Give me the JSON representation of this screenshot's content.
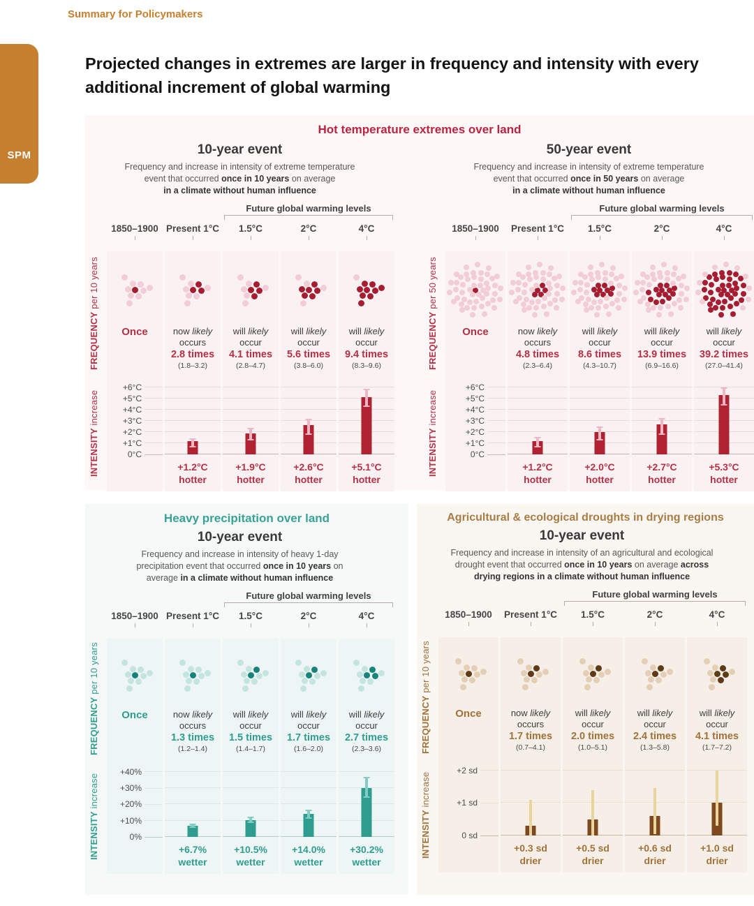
{
  "page": {
    "eyebrow": "Summary for Policymakers",
    "spm_tab": "SPM",
    "title": "Projected changes in extremes are larger in frequency and intensity with every additional increment of global warming"
  },
  "shared": {
    "future_label": "Future global warming levels",
    "columns": [
      "1850–1900",
      "Present 1°C",
      "1.5°C",
      "2°C",
      "4°C"
    ]
  },
  "panels": {
    "hot": {
      "title": "Hot temperature extremes over land",
      "colors": {
        "title": "#bd2340",
        "accent": "#b53045",
        "bar": "#b02231",
        "dot_light": "#f2cdd5",
        "dot_dark": "#a81c31",
        "err": "#efb6c3",
        "panel_bg": "#fdf7f7",
        "card_bg": "#faf2f2",
        "grid": "#e7dada",
        "zero": "#c6b6b6"
      },
      "subs": [
        {
          "subtitle": "10-year event",
          "desc_html": "Frequency and increase in intensity of extreme temperature<br>event that occurred <b>once in 10 years</b> on average<br><b>in a climate without human influence</b>",
          "freq_axis_strong": "FREQUENCY",
          "freq_axis_rest": "per 10 years",
          "intensity_axis_strong": "INTENSITY",
          "intensity_axis_rest": "increase",
          "dots_total": 10,
          "ymax": 6.6,
          "yticks": [
            {
              "label": "+6°C",
              "v": 6
            },
            {
              "label": "+5°C",
              "v": 5
            },
            {
              "label": "+4°C",
              "v": 4
            },
            {
              "label": "+3°C",
              "v": 3
            },
            {
              "label": "+2°C",
              "v": 2
            },
            {
              "label": "+1°C",
              "v": 1
            },
            {
              "label": "0°C",
              "v": 0
            }
          ],
          "cols": [
            {
              "once": "Once",
              "dark": 1
            },
            {
              "lead_html": "now <i>likely</i><br>occurs",
              "times": "2.8 times",
              "range": "(1.8–3.2)",
              "dark": 3,
              "bar": 1.2,
              "lo": 0.7,
              "hi": 1.4,
              "bar_label": "+1.2°C",
              "bar_label2": "hotter"
            },
            {
              "lead_html": "will <i>likely</i><br>occur",
              "times": "4.1 times",
              "range": "(2.8–4.7)",
              "dark": 4,
              "bar": 1.9,
              "lo": 1.3,
              "hi": 2.3,
              "bar_label": "+1.9°C",
              "bar_label2": "hotter"
            },
            {
              "lead_html": "will <i>likely</i><br>occur",
              "times": "5.6 times",
              "range": "(3.8–6.0)",
              "dark": 6,
              "bar": 2.6,
              "lo": 1.8,
              "hi": 3.1,
              "bar_label": "+2.6°C",
              "bar_label2": "hotter"
            },
            {
              "lead_html": "will <i>likely</i><br>occur",
              "times": "9.4 times",
              "range": "(8.3–9.6)",
              "dark": 9,
              "bar": 5.1,
              "lo": 4.3,
              "hi": 5.8,
              "bar_label": "+5.1°C",
              "bar_label2": "hotter"
            }
          ]
        },
        {
          "subtitle": "50-year event",
          "desc_html": "Frequency and increase in intensity of extreme temperature<br>event that occurred <b>once in 50 years</b> on average<br><b>in a climate without human influence</b>",
          "freq_axis_strong": "FREQUENCY",
          "freq_axis_rest": "per 50 years",
          "intensity_axis_strong": "INTENSITY",
          "intensity_axis_rest": "increase",
          "dots_total": 50,
          "ymax": 6.6,
          "yticks": [
            {
              "label": "+6°C",
              "v": 6
            },
            {
              "label": "+5°C",
              "v": 5
            },
            {
              "label": "+4°C",
              "v": 4
            },
            {
              "label": "+3°C",
              "v": 3
            },
            {
              "label": "+2°C",
              "v": 2
            },
            {
              "label": "+1°C",
              "v": 1
            },
            {
              "label": "0°C",
              "v": 0
            }
          ],
          "cols": [
            {
              "once": "Once",
              "dark": 1
            },
            {
              "lead_html": "now <i>likely</i><br>occurs",
              "times": "4.8 times",
              "range": "(2.3–6.4)",
              "dark": 5,
              "bar": 1.2,
              "lo": 0.7,
              "hi": 1.5,
              "bar_label": "+1.2°C",
              "bar_label2": "hotter"
            },
            {
              "lead_html": "will <i>likely</i><br>occur",
              "times": "8.6 times",
              "range": "(4.3–10.7)",
              "dark": 9,
              "bar": 2.0,
              "lo": 1.3,
              "hi": 2.4,
              "bar_label": "+2.0°C",
              "bar_label2": "hotter"
            },
            {
              "lead_html": "will <i>likely</i><br>occur",
              "times": "13.9 times",
              "range": "(6.9–16.6)",
              "dark": 14,
              "bar": 2.7,
              "lo": 1.8,
              "hi": 3.2,
              "bar_label": "+2.7°C",
              "bar_label2": "hotter"
            },
            {
              "lead_html": "will <i>likely</i><br>occur",
              "times": "39.2 times",
              "range": "(27.0–41.4)",
              "dark": 39,
              "bar": 5.3,
              "lo": 4.4,
              "hi": 5.9,
              "bar_label": "+5.3°C",
              "bar_label2": "hotter"
            }
          ]
        }
      ]
    },
    "precip": {
      "title": "Heavy precipitation over land",
      "colors": {
        "title": "#39a296",
        "accent": "#2f9d90",
        "bar": "#2e9d8f",
        "dot_light": "#c4e4e0",
        "dot_dark": "#17837a",
        "err": "#82ccc4",
        "panel_bg": "#f5faf9",
        "card_bg": "#eef6f5",
        "grid": "#d9e8e6",
        "zero": "#b7cbc8"
      },
      "subs": [
        {
          "subtitle": "10-year event",
          "desc_html": "Frequency and increase in intensity of heavy 1-day<br>precipitation event that occurred <b>once in 10 years</b> on<br>average <b>in a climate without human influence</b>",
          "freq_axis_strong": "FREQUENCY",
          "freq_axis_rest": "per 10 years",
          "intensity_axis_strong": "INTENSITY",
          "intensity_axis_rest": "increase",
          "dots_total": 10,
          "ymax": 45,
          "yticks": [
            {
              "label": "+40%",
              "v": 40
            },
            {
              "label": "+30%",
              "v": 30
            },
            {
              "label": "+20%",
              "v": 20
            },
            {
              "label": "+10%",
              "v": 10
            },
            {
              "label": "0%",
              "v": 0
            }
          ],
          "cols": [
            {
              "once": "Once",
              "dark": 1
            },
            {
              "lead_html": "now <i>likely</i><br>occurs",
              "times": "1.3 times",
              "range": "(1.2–1.4)",
              "dark": 1,
              "bar": 6.7,
              "lo": 5.8,
              "hi": 7.6,
              "bar_label": "+6.7%",
              "bar_label2": "wetter"
            },
            {
              "lead_html": "will <i>likely</i><br>occur",
              "times": "1.5 times",
              "range": "(1.4–1.7)",
              "dark": 2,
              "bar": 10.5,
              "lo": 8.8,
              "hi": 12.0,
              "bar_label": "+10.5%",
              "bar_label2": "wetter"
            },
            {
              "lead_html": "will <i>likely</i><br>occur",
              "times": "1.7 times",
              "range": "(1.6–2.0)",
              "dark": 2,
              "bar": 14.0,
              "lo": 11.5,
              "hi": 16.5,
              "bar_label": "+14.0%",
              "bar_label2": "wetter"
            },
            {
              "lead_html": "will <i>likely</i><br>occur",
              "times": "2.7 times",
              "range": "(2.3–3.6)",
              "dark": 3,
              "bar": 30.2,
              "lo": 24.5,
              "hi": 36.5,
              "bar_label": "+30.2%",
              "bar_label2": "wetter"
            }
          ]
        }
      ]
    },
    "drought": {
      "title": "Agricultural & ecological droughts in drying regions",
      "colors": {
        "title": "#a87c44",
        "accent": "#a2713a",
        "bar": "#7c4a1e",
        "dot_light": "#e4cfb6",
        "dot_dark": "#5f3a17",
        "err": "#e9d49e",
        "panel_bg": "#faf6f1",
        "card_bg": "#f6efe7",
        "grid": "#e9dfd2",
        "zero": "#c7b9a6"
      },
      "subs": [
        {
          "subtitle": "10-year event",
          "desc_html": "Frequency and increase in intensity of an agricultural and ecological<br>drought event that occurred <b>once in 10 years</b> on average <b>across</b><br><b>drying regions in a climate without human influence</b>",
          "freq_axis_strong": "FREQUENCY",
          "freq_axis_rest": "per 10 years",
          "intensity_axis_strong": "INTENSITY",
          "intensity_axis_rest": "increase",
          "dots_total": 10,
          "ymax": 2.25,
          "yticks": [
            {
              "label": "+2 sd",
              "v": 2
            },
            {
              "label": "+1 sd",
              "v": 1
            },
            {
              "label": "0 sd",
              "v": 0
            }
          ],
          "cols": [
            {
              "once": "Once",
              "dark": 1
            },
            {
              "lead_html": "now <i>likely</i><br>occurs",
              "times": "1.7 times",
              "range": "(0.7–4.1)",
              "dark": 2,
              "bar": 0.3,
              "lo": 0.0,
              "hi": 1.1,
              "bar_label": "+0.3 sd",
              "bar_label2": "drier"
            },
            {
              "lead_html": "will <i>likely</i><br>occur",
              "times": "2.0 times",
              "range": "(1.0–5.1)",
              "dark": 2,
              "bar": 0.5,
              "lo": 0.0,
              "hi": 1.4,
              "bar_label": "+0.5 sd",
              "bar_label2": "drier"
            },
            {
              "lead_html": "will <i>likely</i><br>occur",
              "times": "2.4 times",
              "range": "(1.3–5.8)",
              "dark": 2,
              "bar": 0.6,
              "lo": 0.05,
              "hi": 1.45,
              "bar_label": "+0.6 sd",
              "bar_label2": "drier"
            },
            {
              "lead_html": "will <i>likely</i><br>occur",
              "times": "4.1 times",
              "range": "(1.7–7.2)",
              "dark": 4,
              "bar": 1.0,
              "lo": 0.3,
              "hi": 2.0,
              "bar_label": "+1.0 sd",
              "bar_label2": "drier"
            }
          ]
        }
      ]
    }
  },
  "chart_data": [
    {
      "type": "bar",
      "title": "Hot temperature extremes over land",
      "subtitle": "10-year event",
      "categories": [
        "1850–1900",
        "Present 1°C",
        "1.5°C",
        "2°C",
        "4°C"
      ],
      "frequency": {
        "label": "FREQUENCY per 10 years",
        "baseline": "Once",
        "times": [
          1,
          2.8,
          4.1,
          5.6,
          9.4
        ],
        "likely_ranges": [
          null,
          [
            1.8,
            3.2
          ],
          [
            2.8,
            4.7
          ],
          [
            3.8,
            6.0
          ],
          [
            8.3,
            9.6
          ]
        ]
      },
      "intensity": {
        "label": "INTENSITY increase",
        "unit": "°C",
        "values": [
          null,
          1.2,
          1.9,
          2.6,
          5.1
        ],
        "error_bars": [
          null,
          [
            0.7,
            1.4
          ],
          [
            1.3,
            2.3
          ],
          [
            1.8,
            3.1
          ],
          [
            4.3,
            5.8
          ]
        ],
        "yticks": [
          0,
          1,
          2,
          3,
          4,
          5,
          6
        ],
        "ylim": [
          0,
          6.6
        ]
      }
    },
    {
      "type": "bar",
      "title": "Hot temperature extremes over land",
      "subtitle": "50-year event",
      "categories": [
        "1850–1900",
        "Present 1°C",
        "1.5°C",
        "2°C",
        "4°C"
      ],
      "frequency": {
        "label": "FREQUENCY per 50 years",
        "baseline": "Once",
        "times": [
          1,
          4.8,
          8.6,
          13.9,
          39.2
        ],
        "likely_ranges": [
          null,
          [
            2.3,
            6.4
          ],
          [
            4.3,
            10.7
          ],
          [
            6.9,
            16.6
          ],
          [
            27.0,
            41.4
          ]
        ]
      },
      "intensity": {
        "label": "INTENSITY increase",
        "unit": "°C",
        "values": [
          null,
          1.2,
          2.0,
          2.7,
          5.3
        ],
        "error_bars": [
          null,
          [
            0.7,
            1.5
          ],
          [
            1.3,
            2.4
          ],
          [
            1.8,
            3.2
          ],
          [
            4.4,
            5.9
          ]
        ],
        "yticks": [
          0,
          1,
          2,
          3,
          4,
          5,
          6
        ],
        "ylim": [
          0,
          6.6
        ]
      }
    },
    {
      "type": "bar",
      "title": "Heavy precipitation over land",
      "subtitle": "10-year event",
      "categories": [
        "1850–1900",
        "Present 1°C",
        "1.5°C",
        "2°C",
        "4°C"
      ],
      "frequency": {
        "label": "FREQUENCY per 10 years",
        "baseline": "Once",
        "times": [
          1,
          1.3,
          1.5,
          1.7,
          2.7
        ],
        "likely_ranges": [
          null,
          [
            1.2,
            1.4
          ],
          [
            1.4,
            1.7
          ],
          [
            1.6,
            2.0
          ],
          [
            2.3,
            3.6
          ]
        ]
      },
      "intensity": {
        "label": "INTENSITY increase",
        "unit": "%",
        "values": [
          null,
          6.7,
          10.5,
          14.0,
          30.2
        ],
        "error_bars": [
          null,
          [
            5.8,
            7.6
          ],
          [
            8.8,
            12.0
          ],
          [
            11.5,
            16.5
          ],
          [
            24.5,
            36.5
          ]
        ],
        "yticks": [
          0,
          10,
          20,
          30,
          40
        ],
        "ylim": [
          0,
          45
        ]
      }
    },
    {
      "type": "bar",
      "title": "Agricultural & ecological droughts in drying regions",
      "subtitle": "10-year event",
      "categories": [
        "1850–1900",
        "Present 1°C",
        "1.5°C",
        "2°C",
        "4°C"
      ],
      "frequency": {
        "label": "FREQUENCY per 10 years",
        "baseline": "Once",
        "times": [
          1,
          1.7,
          2.0,
          2.4,
          4.1
        ],
        "likely_ranges": [
          null,
          [
            0.7,
            4.1
          ],
          [
            1.0,
            5.1
          ],
          [
            1.3,
            5.8
          ],
          [
            1.7,
            7.2
          ]
        ]
      },
      "intensity": {
        "label": "INTENSITY increase",
        "unit": "sd",
        "values": [
          null,
          0.3,
          0.5,
          0.6,
          1.0
        ],
        "error_bars": [
          null,
          [
            0.0,
            1.1
          ],
          [
            0.0,
            1.4
          ],
          [
            0.05,
            1.45
          ],
          [
            0.3,
            2.0
          ]
        ],
        "yticks": [
          0,
          1,
          2
        ],
        "ylim": [
          0,
          2.25
        ]
      }
    }
  ]
}
